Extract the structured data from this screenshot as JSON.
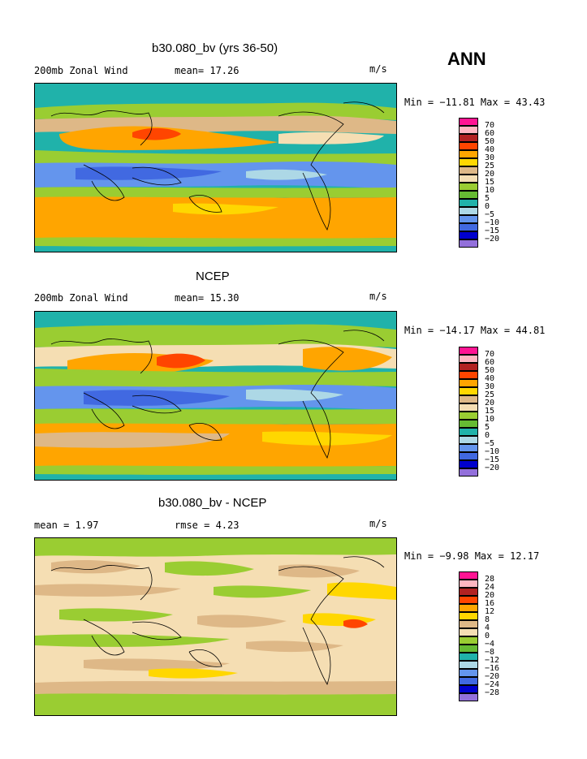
{
  "season_label": "ANN",
  "panels": [
    {
      "title": "b30.080_bv (yrs 36-50)",
      "left_text": "200mb Zonal Wind",
      "mean_text": "mean=  17.26",
      "units": "m/s",
      "minmax": "Min = −11.81 Max =  43.43",
      "colorbar": {
        "labels": [
          "70",
          "60",
          "50",
          "40",
          "30",
          "25",
          "20",
          "15",
          "10",
          "5",
          "0",
          "−5",
          "−10",
          "−15",
          "−20"
        ],
        "colors": [
          "#ff1493",
          "#ffb6c1",
          "#b22222",
          "#ff4500",
          "#ffa500",
          "#ffd700",
          "#deb887",
          "#f5deb3",
          "#9acd32",
          "#66bb33",
          "#20b2aa",
          "#add8e6",
          "#6495ed",
          "#4169e1",
          "#0000cd",
          "#9370db"
        ]
      }
    },
    {
      "title": "NCEP",
      "left_text": "200mb Zonal Wind",
      "mean_text": "mean=  15.30",
      "units": "m/s",
      "minmax": "Min = −14.17 Max =  44.81",
      "colorbar": {
        "labels": [
          "70",
          "60",
          "50",
          "40",
          "30",
          "25",
          "20",
          "15",
          "10",
          "5",
          "0",
          "−5",
          "−10",
          "−15",
          "−20"
        ],
        "colors": [
          "#ff1493",
          "#ffb6c1",
          "#b22222",
          "#ff4500",
          "#ffa500",
          "#ffd700",
          "#deb887",
          "#f5deb3",
          "#9acd32",
          "#66bb33",
          "#20b2aa",
          "#add8e6",
          "#6495ed",
          "#4169e1",
          "#0000cd",
          "#9370db"
        ]
      }
    },
    {
      "title": "b30.080_bv - NCEP",
      "left_text": "mean =   1.97",
      "mean_text": "rmse =   4.23",
      "units": "m/s",
      "minmax": "Min =  −9.98 Max =  12.17",
      "colorbar": {
        "labels": [
          "28",
          "24",
          "20",
          "16",
          "12",
          "8",
          "4",
          "0",
          "−4",
          "−8",
          "−12",
          "−16",
          "−20",
          "−24",
          "−28"
        ],
        "colors": [
          "#ff1493",
          "#ffb6c1",
          "#b22222",
          "#ff4500",
          "#ffa500",
          "#ffd700",
          "#deb887",
          "#f5deb3",
          "#9acd32",
          "#66bb33",
          "#20b2aa",
          "#add8e6",
          "#6495ed",
          "#4169e1",
          "#0000cd",
          "#9370db"
        ]
      }
    }
  ]
}
